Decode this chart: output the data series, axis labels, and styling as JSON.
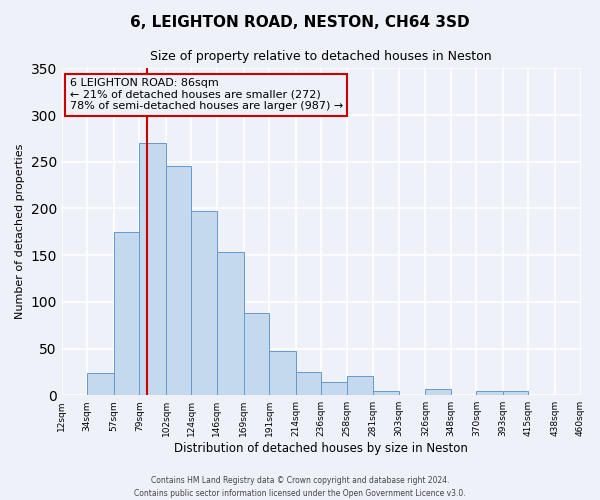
{
  "title": "6, LEIGHTON ROAD, NESTON, CH64 3SD",
  "subtitle": "Size of property relative to detached houses in Neston",
  "xlabel": "Distribution of detached houses by size in Neston",
  "ylabel": "Number of detached properties",
  "edges": [
    12,
    34,
    57,
    79,
    102,
    124,
    146,
    169,
    191,
    214,
    236,
    258,
    281,
    303,
    326,
    348,
    370,
    393,
    415,
    438,
    460
  ],
  "tick_labels": [
    "12sqm",
    "34sqm",
    "57sqm",
    "79sqm",
    "102sqm",
    "124sqm",
    "146sqm",
    "169sqm",
    "191sqm",
    "214sqm",
    "236sqm",
    "258sqm",
    "281sqm",
    "303sqm",
    "326sqm",
    "348sqm",
    "370sqm",
    "393sqm",
    "415sqm",
    "438sqm",
    "460sqm"
  ],
  "heights": [
    0,
    24,
    175,
    270,
    245,
    197,
    153,
    88,
    47,
    25,
    14,
    21,
    5,
    0,
    7,
    0,
    5,
    5,
    0,
    0
  ],
  "bar_color": "#c5d9ee",
  "bar_edge_color": "#6699cc",
  "vline_x": 86,
  "vline_color": "#cc0000",
  "annotation_text_line1": "6 LEIGHTON ROAD: 86sqm",
  "annotation_text_line2": "← 21% of detached houses are smaller (272)",
  "annotation_text_line3": "78% of semi-detached houses are larger (987) →",
  "annotation_box_color": "#cc0000",
  "ylim": [
    0,
    350
  ],
  "yticks": [
    0,
    50,
    100,
    150,
    200,
    250,
    300,
    350
  ],
  "footer_line1": "Contains HM Land Registry data © Crown copyright and database right 2024.",
  "footer_line2": "Contains public sector information licensed under the Open Government Licence v3.0.",
  "bg_color": "#eef2f8",
  "grid_color": "#ffffff",
  "title_fontsize": 11,
  "subtitle_fontsize": 9,
  "xlabel_fontsize": 8.5,
  "ylabel_fontsize": 8,
  "tick_fontsize": 6.5,
  "annotation_fontsize": 8,
  "footer_fontsize": 5.5
}
